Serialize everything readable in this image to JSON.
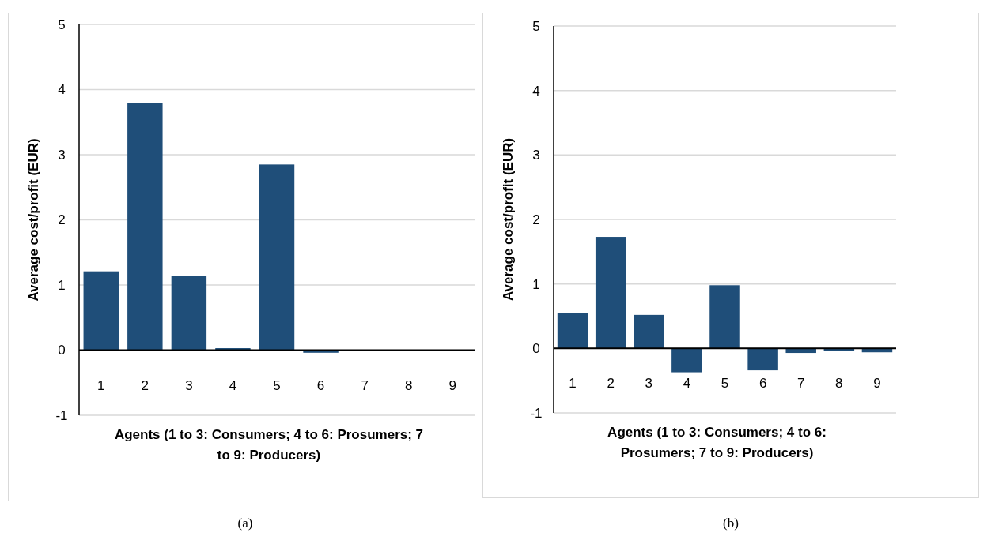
{
  "chart_data": [
    {
      "type": "bar",
      "title": "(a)",
      "xlabel": "Agents (1 to 3: Consumers; 4 to 6: Prosumers; 7 to 9: Producers)",
      "ylabel": "Average cost/profit  (EUR)",
      "categories": [
        "1",
        "2",
        "3",
        "4",
        "5",
        "6",
        "7",
        "8",
        "9"
      ],
      "values": [
        1.21,
        3.79,
        1.14,
        0.03,
        2.85,
        -0.04,
        0,
        0,
        0
      ],
      "color": "#1f4e79",
      "ylim": [
        -1,
        5
      ],
      "yticks": [
        -1,
        0,
        1,
        2,
        3,
        4,
        5
      ],
      "grid": "y"
    },
    {
      "type": "bar",
      "title": "(b)",
      "xlabel": "Agents (1 to 3: Consumers; 4 to 6: Prosumers; 7 to 9: Producers)",
      "ylabel": "Average cost/profit  (EUR)",
      "categories": [
        "1",
        "2",
        "3",
        "4",
        "5",
        "6",
        "7",
        "8",
        "9"
      ],
      "values": [
        0.55,
        1.73,
        0.52,
        -0.37,
        0.98,
        -0.34,
        -0.07,
        -0.04,
        -0.06
      ],
      "color": "#1f4e79",
      "ylim": [
        -1,
        5
      ],
      "yticks": [
        -1,
        0,
        1,
        2,
        3,
        4,
        5
      ],
      "grid": "y"
    }
  ]
}
